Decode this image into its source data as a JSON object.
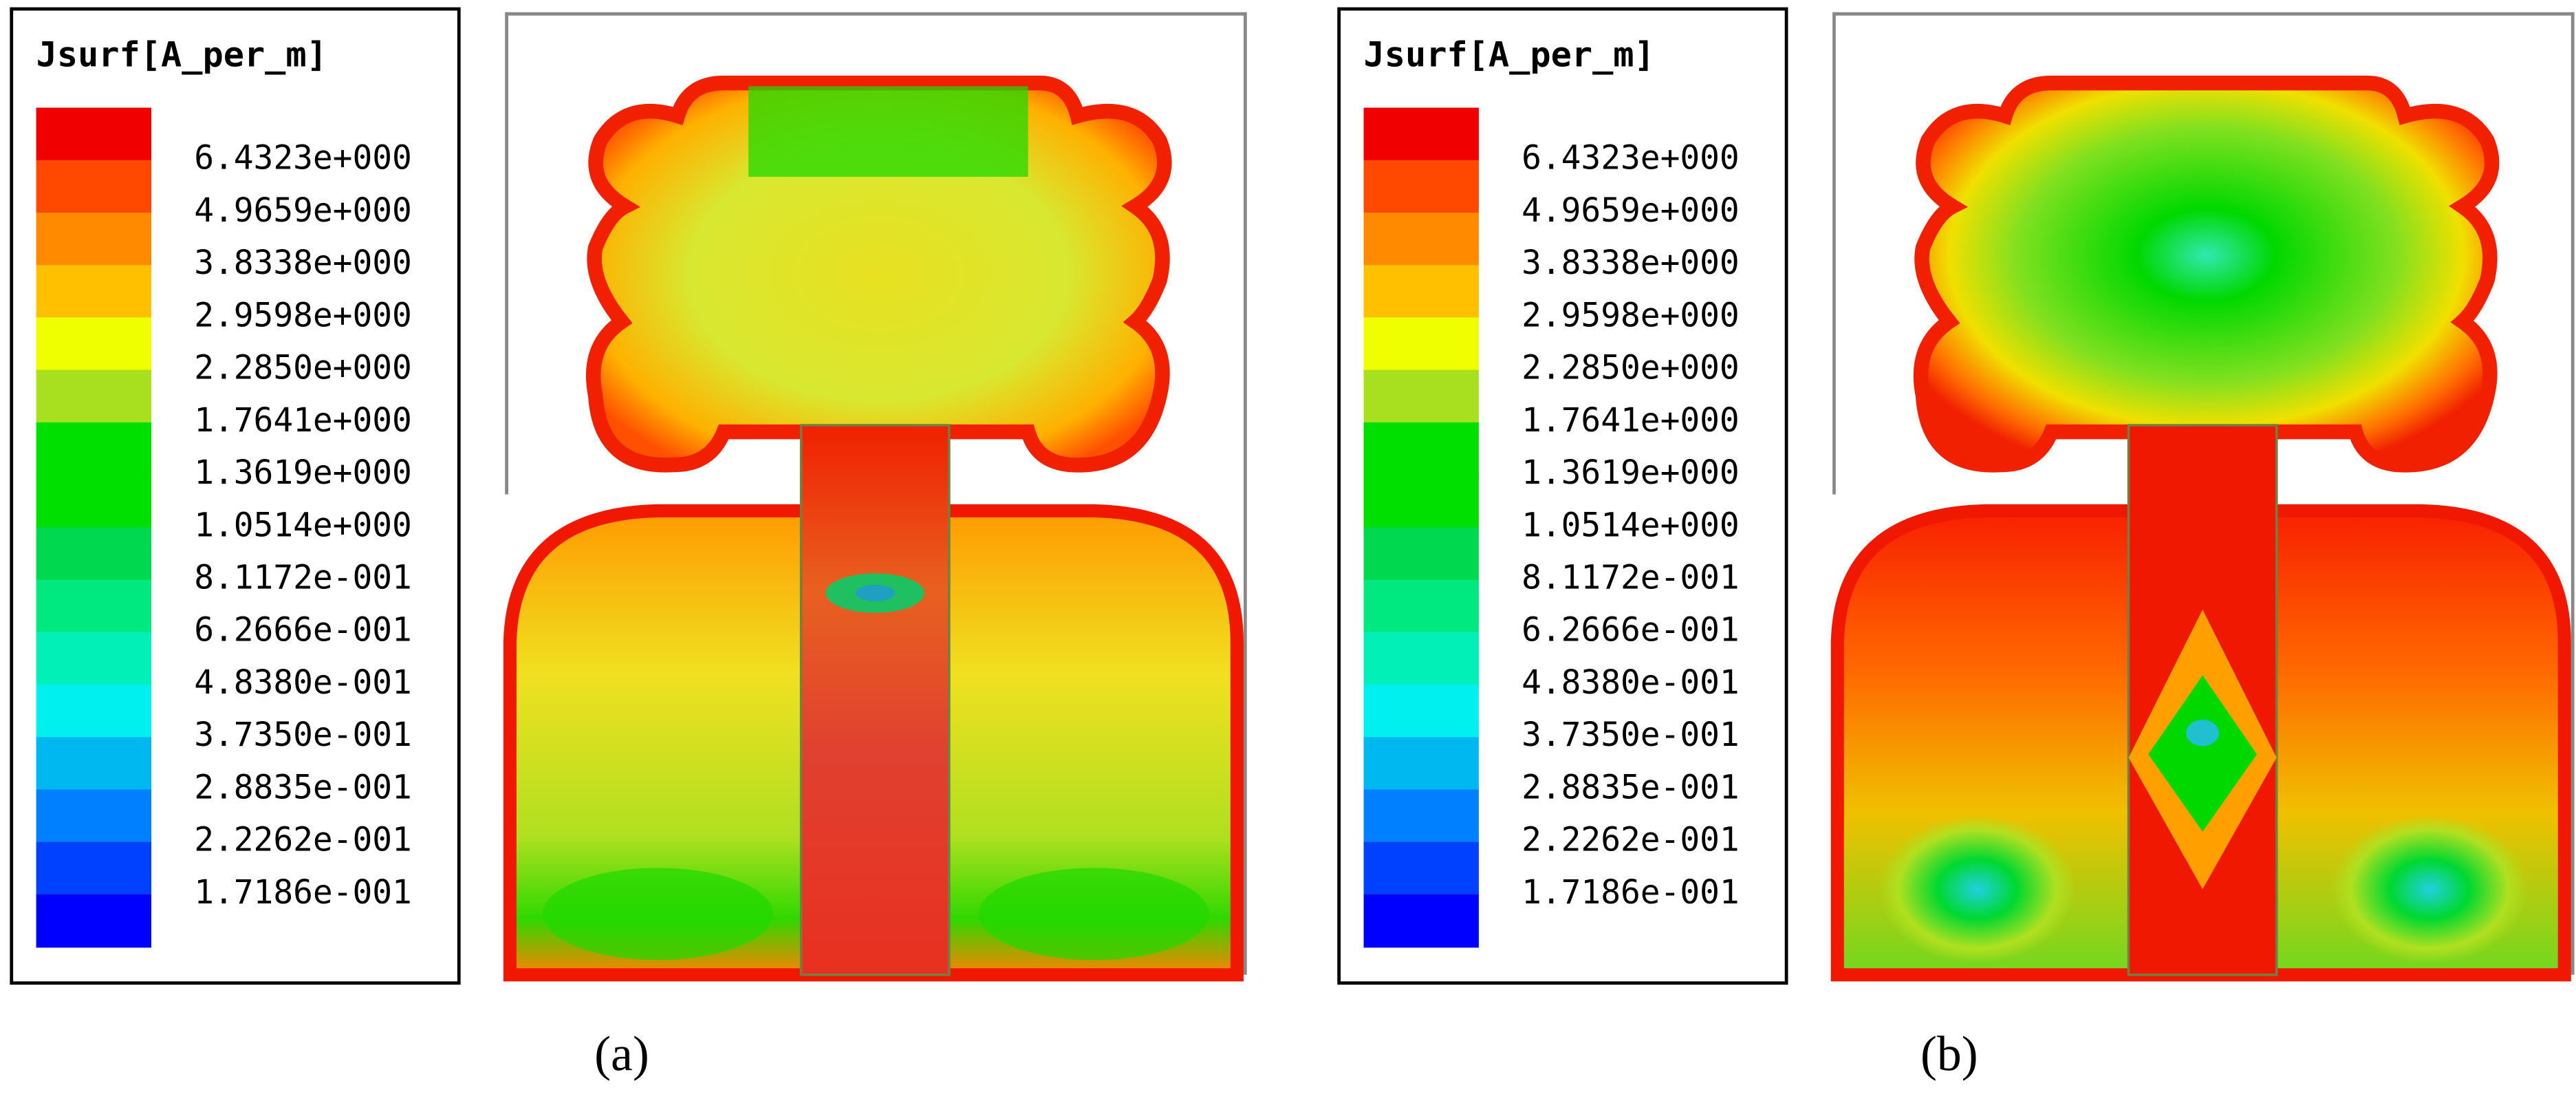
{
  "panels": [
    {
      "legend": {
        "title": "Jsurf[A_per_m]",
        "labels": [
          "6.4323e+000",
          "4.9659e+000",
          "3.8338e+000",
          "2.9598e+000",
          "2.2850e+000",
          "1.7641e+000",
          "1.3619e+000",
          "1.0514e+000",
          "8.1172e-001",
          "6.2666e-001",
          "4.8380e-001",
          "3.7350e-001",
          "2.8835e-001",
          "2.2262e-001",
          "1.7186e-001"
        ],
        "colors": [
          "#f00000",
          "#ff4800",
          "#ff8a00",
          "#ffc000",
          "#f0ff00",
          "#a8e020",
          "#00e000",
          "#00e000",
          "#00d850",
          "#00e880",
          "#00f0b8",
          "#00f0f0",
          "#00b8f0",
          "#0080ff",
          "#0040ff",
          "#0000ff"
        ]
      },
      "caption": "(a)"
    },
    {
      "legend": {
        "title": "Jsurf[A_per_m]",
        "labels": [
          "6.4323e+000",
          "4.9659e+000",
          "3.8338e+000",
          "2.9598e+000",
          "2.2850e+000",
          "1.7641e+000",
          "1.3619e+000",
          "1.0514e+000",
          "8.1172e-001",
          "6.2666e-001",
          "4.8380e-001",
          "3.7350e-001",
          "2.8835e-001",
          "2.2262e-001",
          "1.7186e-001"
        ],
        "colors": [
          "#f00000",
          "#ff4800",
          "#ff8a00",
          "#ffc000",
          "#f0ff00",
          "#a8e020",
          "#00e000",
          "#00e000",
          "#00d850",
          "#00e880",
          "#00f0b8",
          "#00f0f0",
          "#00b8f0",
          "#0080ff",
          "#0040ff",
          "#0000ff"
        ]
      },
      "caption": "(b)"
    }
  ]
}
